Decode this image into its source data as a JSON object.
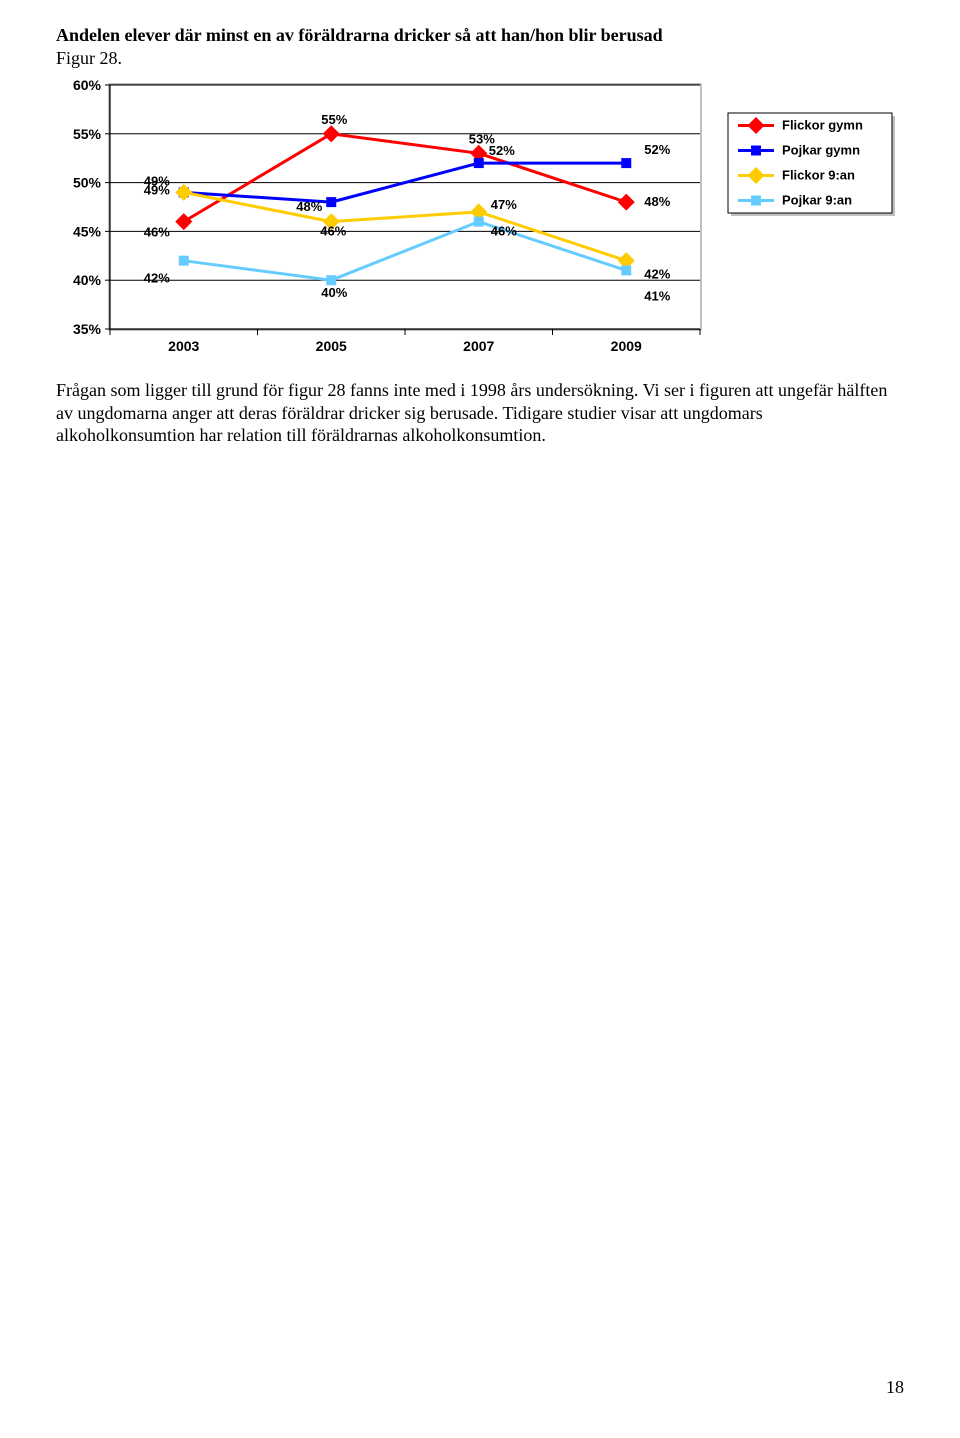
{
  "title_bold": "Andelen elever där minst en av föräldrarna dricker så att han/hon blir berusad",
  "title_fig": "Figur 28.",
  "body_text": "Frågan som ligger till grund för figur 28 fanns inte med i 1998 års undersökning. Vi ser i figuren att ungefär hälften av ungdomarna anger att deras föräldrar dricker sig berusade. Tidigare studier visar att ungdomars alkoholkonsumtion har relation till föräldrarnas alkoholkonsumtion.",
  "page_number": "18",
  "chart": {
    "type": "line",
    "x_categories": [
      "2003",
      "2005",
      "2007",
      "2009"
    ],
    "y_ticks": [
      "35%",
      "40%",
      "45%",
      "50%",
      "55%",
      "60%"
    ],
    "ylim": [
      35,
      60
    ],
    "background_color": "#ffffff",
    "plot_border_color": "#808080",
    "grid_color": "#000000",
    "axis_color": "#000000",
    "tick_color": "#000000",
    "series": [
      {
        "name": "Flickor gymn",
        "color": "#ff0000",
        "marker": "diamond",
        "values": [
          46,
          55,
          53,
          48
        ],
        "labels": [
          "46%",
          "55%",
          "53%",
          "48%"
        ]
      },
      {
        "name": "Pojkar gymn",
        "color": "#0000ff",
        "marker": "square",
        "values": [
          49,
          48,
          52,
          52
        ],
        "labels": [
          "49%",
          "48%",
          "52%",
          "52%"
        ]
      },
      {
        "name": "Flickor 9:an",
        "color": "#ffcc00",
        "marker": "diamond",
        "values": [
          49,
          46,
          47,
          42
        ],
        "labels": [
          "49%",
          "46%",
          "47%",
          "42%"
        ]
      },
      {
        "name": "Pojkar 9:an",
        "color": "#66ccff",
        "marker": "square",
        "values": [
          42,
          40,
          46,
          41
        ],
        "labels": [
          "42%",
          "40%",
          "46%",
          "41%"
        ]
      }
    ],
    "line_width": 3,
    "marker_size": 9,
    "label_fontsize": 13,
    "axis_fontsize": 14,
    "legend_border_color": "#000000",
    "legend_fontsize": 13
  }
}
